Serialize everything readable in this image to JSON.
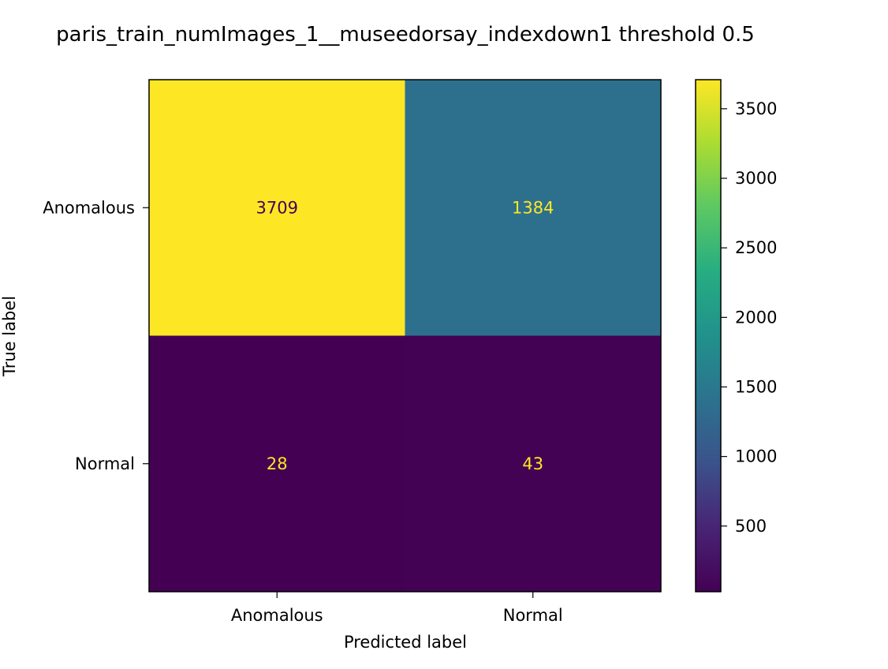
{
  "chart_data": {
    "type": "heatmap",
    "title": "paris_train_numImages_1__museedorsay_indexdown1 threshold 0.5",
    "xlabel": "Predicted label",
    "ylabel": "True label",
    "x_categories": [
      "Anomalous",
      "Normal"
    ],
    "y_categories": [
      "Anomalous",
      "Normal"
    ],
    "values": [
      [
        3709,
        1384
      ],
      [
        28,
        43
      ]
    ],
    "colormap": "viridis",
    "colorbar": {
      "min": 28,
      "max": 3709,
      "ticks": [
        500,
        1000,
        1500,
        2000,
        2500,
        3000,
        3500
      ],
      "tick_labels": [
        "500",
        "1000",
        "1500",
        "2000",
        "2500",
        "3000",
        "3500"
      ]
    },
    "grid": false,
    "colors": {
      "low_text": "#fde725",
      "high_text": "#440154"
    }
  }
}
